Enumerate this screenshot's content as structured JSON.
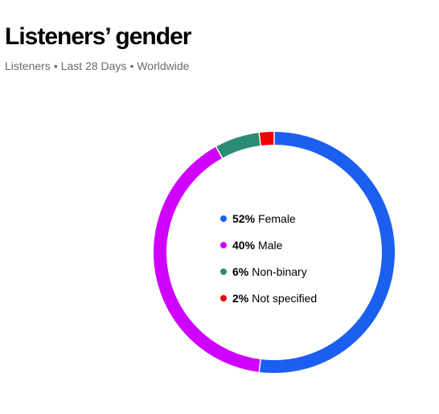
{
  "header": {
    "title": "Listeners’ gender",
    "subtitle_parts": [
      "Listeners",
      "Last 28 Days",
      "Worldwide"
    ],
    "separator": "•"
  },
  "chart_data": {
    "type": "pie",
    "variant": "donut",
    "title": "Listeners’ gender",
    "legend_placement": "center",
    "slices": [
      {
        "label": "Female",
        "value": 52,
        "display": "52%",
        "color": "#1a5ff0"
      },
      {
        "label": "Male",
        "value": 40,
        "display": "40%",
        "color": "#d000ff"
      },
      {
        "label": "Non-binary",
        "value": 6,
        "display": "6%",
        "color": "#2b8c74"
      },
      {
        "label": "Not specified",
        "value": 2,
        "display": "2%",
        "color": "#f00000"
      }
    ]
  }
}
